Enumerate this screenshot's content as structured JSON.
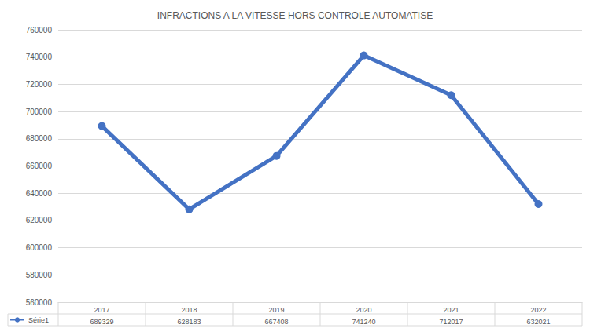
{
  "chart_data": {
    "type": "line",
    "title": "INFRACTIONS A LA VITESSE HORS CONTROLE AUTOMATISE",
    "categories": [
      "2017",
      "2018",
      "2019",
      "2020",
      "2021",
      "2022"
    ],
    "series": [
      {
        "name": "Série1",
        "color": "#4472c4",
        "marker": "circle",
        "values": [
          689329,
          628183,
          667408,
          741240,
          712017,
          632021
        ]
      }
    ],
    "ylim": [
      560000,
      760000
    ],
    "yticks": [
      560000,
      580000,
      600000,
      620000,
      640000,
      660000,
      680000,
      700000,
      720000,
      740000,
      760000
    ],
    "grid": true
  }
}
